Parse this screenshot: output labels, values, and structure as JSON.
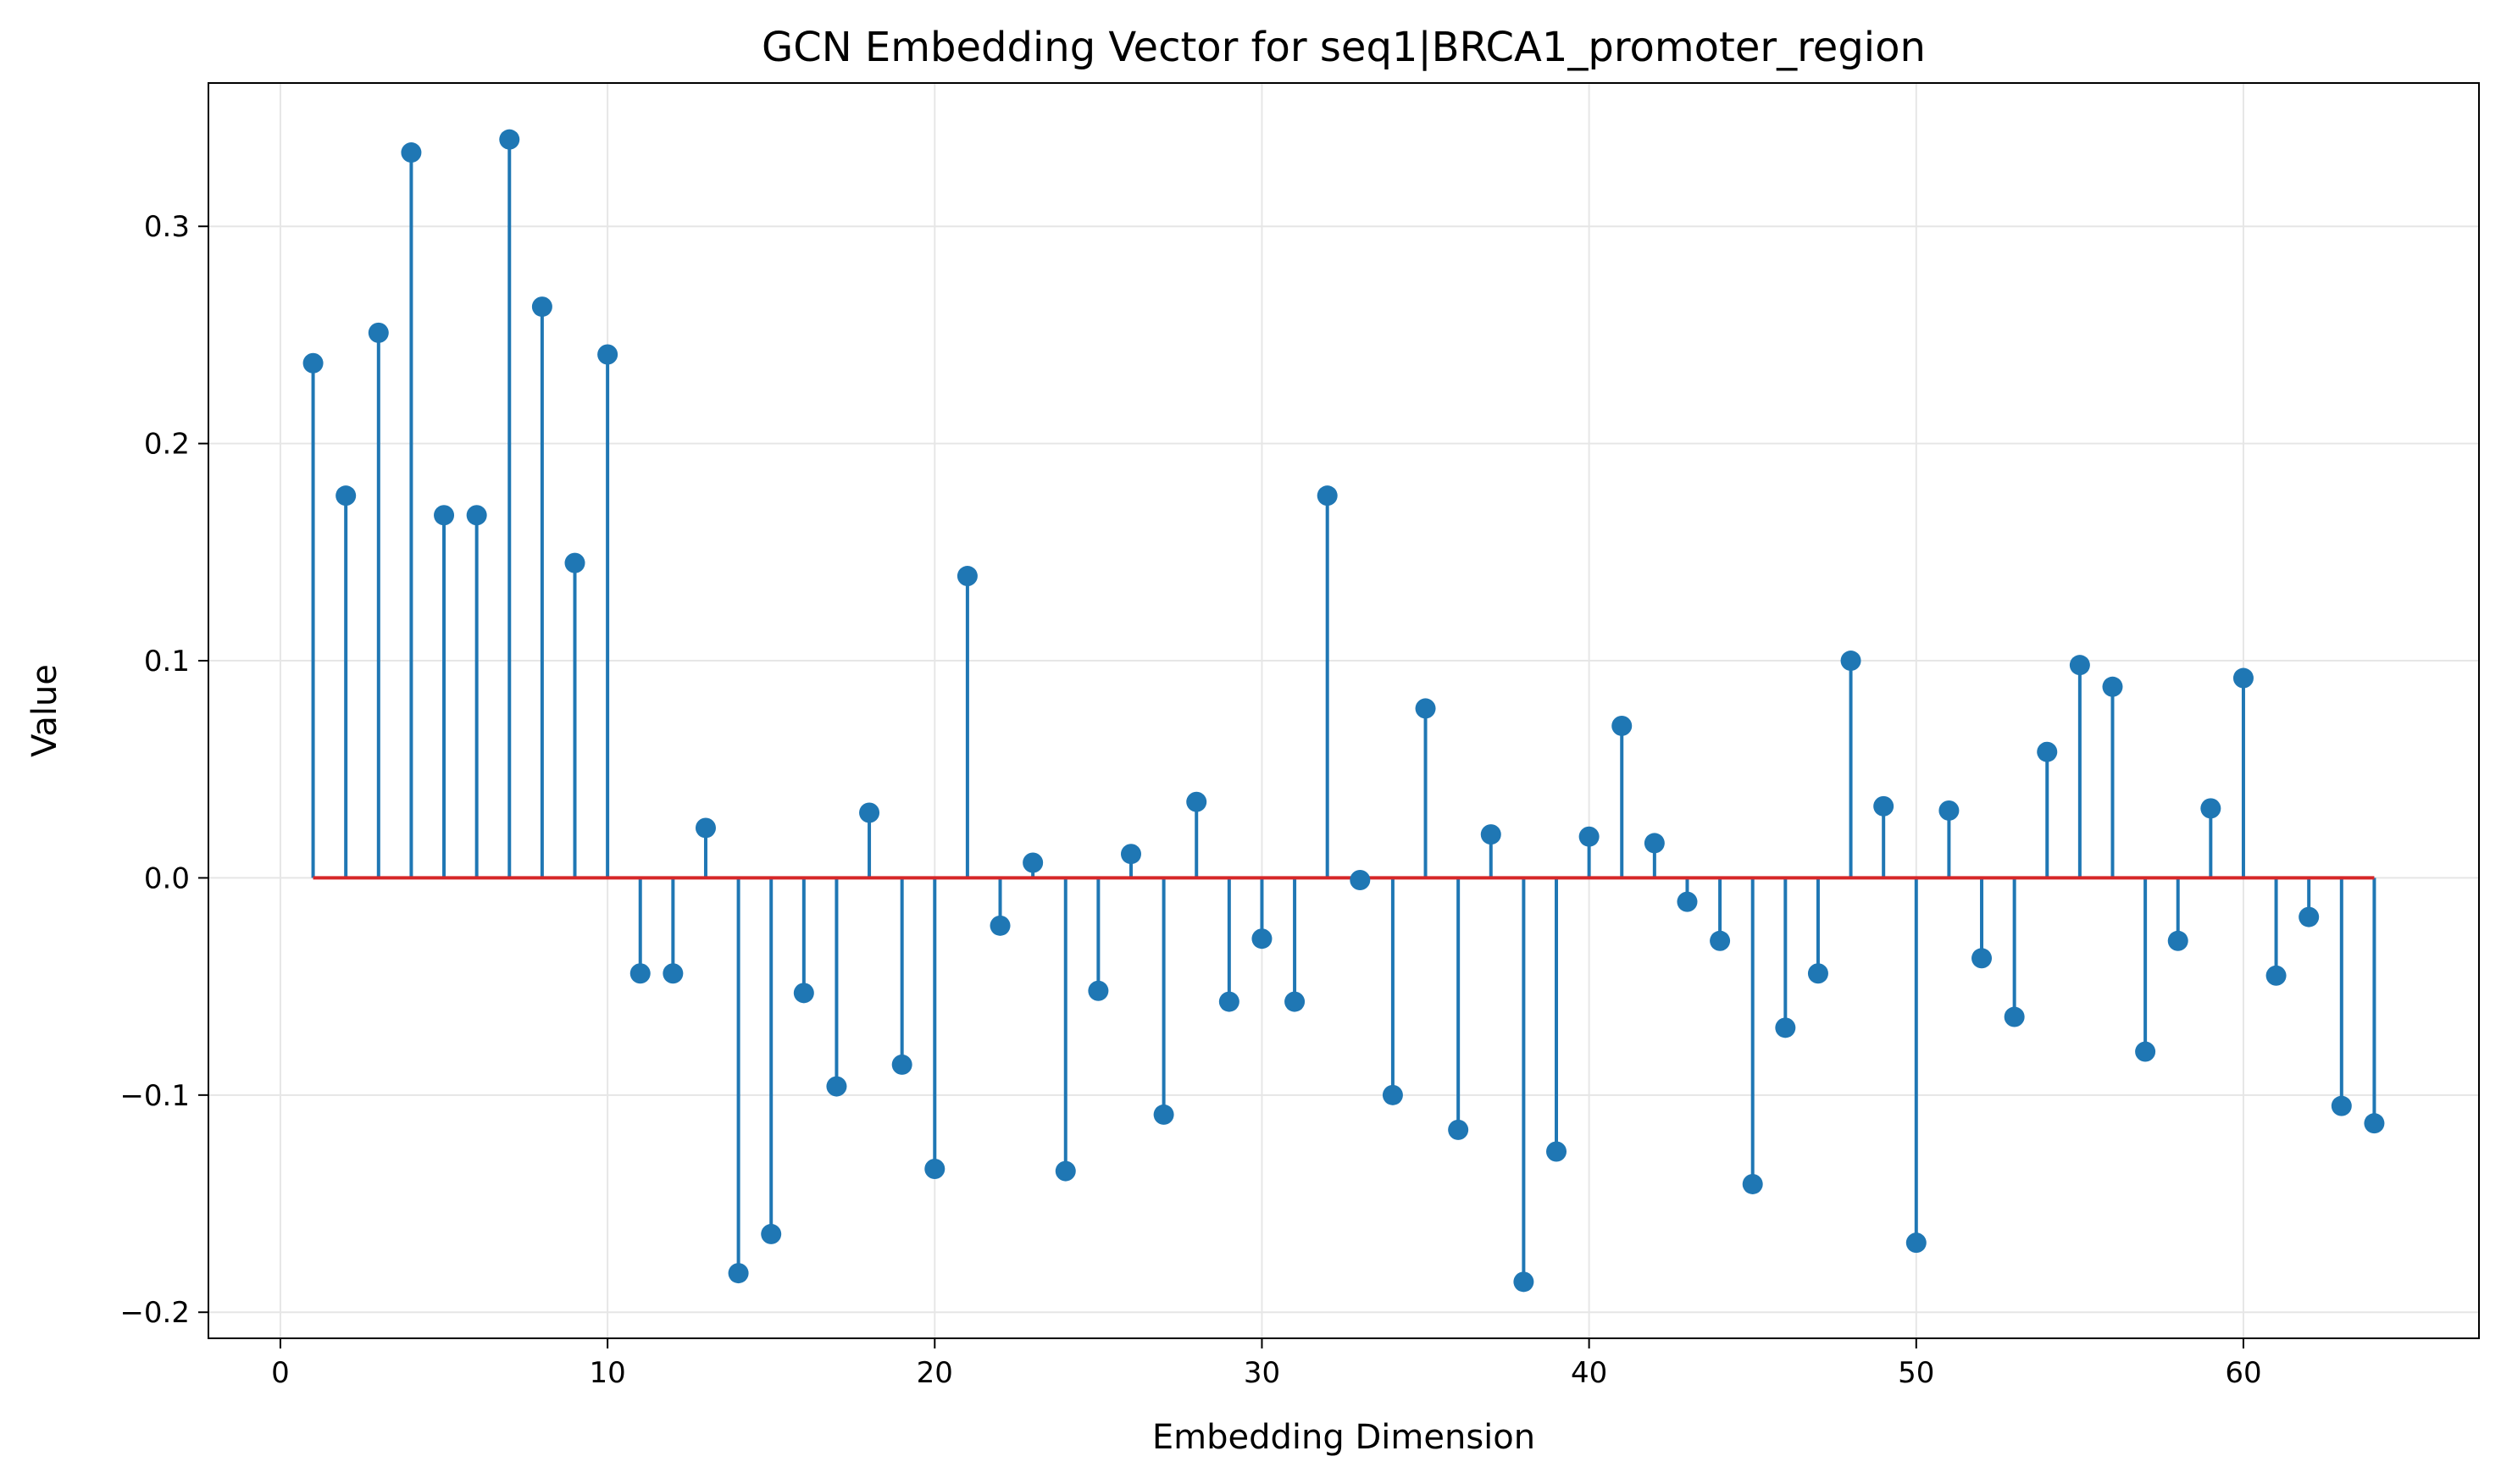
{
  "chart_data": {
    "type": "stem",
    "title": "GCN Embedding Vector for seq1|BRCA1_promoter_region",
    "xlabel": "Embedding Dimension",
    "ylabel": "Value",
    "xlim": [
      -2.2,
      67.2
    ],
    "ylim": [
      -0.212,
      0.366
    ],
    "xticks": [
      0,
      10,
      20,
      30,
      40,
      50,
      60
    ],
    "yticks": [
      -0.2,
      -0.1,
      0.0,
      0.1,
      0.2,
      0.3
    ],
    "ytick_labels": [
      "−0.2",
      "−0.1",
      "0.0",
      "0.1",
      "0.2",
      "0.3"
    ],
    "grid": true,
    "stem_color": "#1f77b4",
    "baseline_color": "#d62728",
    "grid_color": "#e6e6e6",
    "x": [
      1,
      2,
      3,
      4,
      5,
      6,
      7,
      8,
      9,
      10,
      11,
      12,
      13,
      14,
      15,
      16,
      17,
      18,
      19,
      20,
      21,
      22,
      23,
      24,
      25,
      26,
      27,
      28,
      29,
      30,
      31,
      32,
      33,
      34,
      35,
      36,
      37,
      38,
      39,
      40,
      41,
      42,
      43,
      44,
      45,
      46,
      47,
      48,
      49,
      50,
      51,
      52,
      53,
      54,
      55,
      56,
      57,
      58,
      59,
      60,
      61,
      62,
      63,
      64
    ],
    "values": [
      0.237,
      0.176,
      0.251,
      0.334,
      0.167,
      0.167,
      0.34,
      0.263,
      0.145,
      0.241,
      -0.044,
      -0.044,
      0.023,
      -0.182,
      -0.164,
      -0.053,
      -0.096,
      0.03,
      -0.086,
      -0.134,
      0.139,
      -0.022,
      0.007,
      -0.135,
      -0.052,
      0.011,
      -0.109,
      0.035,
      -0.057,
      -0.028,
      -0.057,
      0.176,
      -0.001,
      -0.1,
      0.078,
      -0.116,
      0.02,
      -0.186,
      -0.126,
      0.019,
      0.07,
      0.016,
      -0.011,
      -0.029,
      -0.141,
      -0.069,
      -0.044,
      0.1,
      0.033,
      -0.168,
      0.031,
      -0.037,
      -0.064,
      0.058,
      0.098,
      0.088,
      -0.08,
      -0.029,
      0.032,
      0.092,
      -0.045,
      -0.018,
      -0.105,
      -0.113
    ]
  }
}
